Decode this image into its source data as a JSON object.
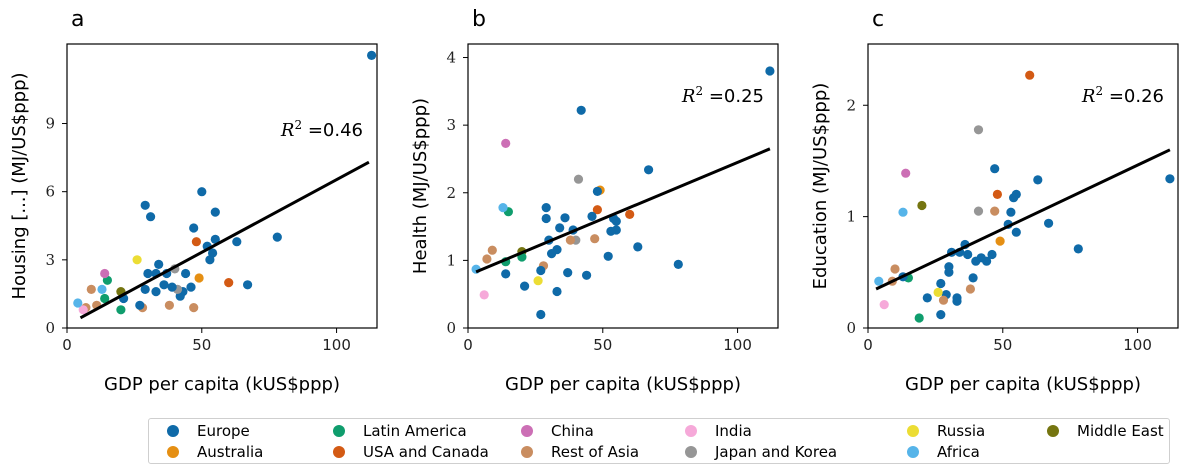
{
  "colors": {
    "Europe": "#0f6aa8",
    "Latin America": "#0f9d6d",
    "China": "#cc6fb5",
    "India": "#f6a9d9",
    "Russia": "#ecdd34",
    "Middle East": "#757510",
    "Australia": "#e58f13",
    "USA and Canada": "#d35a14",
    "Rest of Asia": "#c98d60",
    "Japan and Korea": "#969696",
    "Africa": "#56b4e9",
    "fit_line": "#000000"
  },
  "legend": {
    "row1": [
      "Europe",
      "Latin America",
      "China",
      "India",
      "Russia",
      "Middle East"
    ],
    "row2": [
      "Australia",
      "USA and Canada",
      "Rest of Asia",
      "Japan and Korea",
      "Africa"
    ]
  },
  "chart_data": [
    {
      "type": "scatter",
      "panel_label": "a",
      "xlabel": "GDP per capita (kUS$ppp)",
      "ylabel": "Housing [...] (MJ/US$ppp)",
      "xlim": [
        0,
        115
      ],
      "ylim": [
        0,
        12.5
      ],
      "xticks": [
        0,
        50,
        100
      ],
      "yticks": [
        0,
        3,
        6,
        9
      ],
      "annotation": "R² =0.46",
      "annotation_pos": "upper-right",
      "fit_line": {
        "x": [
          5,
          112
        ],
        "y": [
          0.45,
          7.3
        ]
      },
      "points": [
        {
          "x": 113,
          "y": 12.0,
          "group": "Europe"
        },
        {
          "x": 78,
          "y": 4.0,
          "group": "Europe"
        },
        {
          "x": 67,
          "y": 1.9,
          "group": "Europe"
        },
        {
          "x": 63,
          "y": 3.8,
          "group": "Europe"
        },
        {
          "x": 60,
          "y": 2.0,
          "group": "USA and Canada"
        },
        {
          "x": 55,
          "y": 5.1,
          "group": "Europe"
        },
        {
          "x": 55,
          "y": 3.9,
          "group": "Europe"
        },
        {
          "x": 54,
          "y": 3.3,
          "group": "Europe"
        },
        {
          "x": 53,
          "y": 3.0,
          "group": "Europe"
        },
        {
          "x": 52,
          "y": 3.6,
          "group": "Europe"
        },
        {
          "x": 50,
          "y": 6.0,
          "group": "Europe"
        },
        {
          "x": 49,
          "y": 2.2,
          "group": "Australia"
        },
        {
          "x": 48,
          "y": 3.8,
          "group": "USA and Canada"
        },
        {
          "x": 47,
          "y": 4.4,
          "group": "Europe"
        },
        {
          "x": 47,
          "y": 0.9,
          "group": "Rest of Asia"
        },
        {
          "x": 46,
          "y": 1.8,
          "group": "Europe"
        },
        {
          "x": 44,
          "y": 2.4,
          "group": "Europe"
        },
        {
          "x": 43,
          "y": 1.6,
          "group": "Europe"
        },
        {
          "x": 42,
          "y": 1.4,
          "group": "Europe"
        },
        {
          "x": 41,
          "y": 1.7,
          "group": "Japan and Korea"
        },
        {
          "x": 40,
          "y": 2.6,
          "group": "Japan and Korea"
        },
        {
          "x": 39,
          "y": 1.8,
          "group": "Europe"
        },
        {
          "x": 38,
          "y": 1.0,
          "group": "Rest of Asia"
        },
        {
          "x": 37,
          "y": 2.4,
          "group": "Europe"
        },
        {
          "x": 36,
          "y": 1.9,
          "group": "Europe"
        },
        {
          "x": 34,
          "y": 2.8,
          "group": "Europe"
        },
        {
          "x": 33,
          "y": 2.4,
          "group": "Europe"
        },
        {
          "x": 33,
          "y": 1.6,
          "group": "Europe"
        },
        {
          "x": 31,
          "y": 4.9,
          "group": "Europe"
        },
        {
          "x": 30,
          "y": 2.4,
          "group": "Europe"
        },
        {
          "x": 29,
          "y": 5.4,
          "group": "Europe"
        },
        {
          "x": 29,
          "y": 1.7,
          "group": "Europe"
        },
        {
          "x": 28,
          "y": 0.9,
          "group": "Rest of Asia"
        },
        {
          "x": 27,
          "y": 1.0,
          "group": "Europe"
        },
        {
          "x": 26,
          "y": 3.0,
          "group": "Russia"
        },
        {
          "x": 21,
          "y": 1.3,
          "group": "Europe"
        },
        {
          "x": 20,
          "y": 1.6,
          "group": "Middle East"
        },
        {
          "x": 20,
          "y": 0.8,
          "group": "Latin America"
        },
        {
          "x": 15,
          "y": 2.1,
          "group": "Latin America"
        },
        {
          "x": 14,
          "y": 2.4,
          "group": "China"
        },
        {
          "x": 14,
          "y": 1.3,
          "group": "Latin America"
        },
        {
          "x": 13,
          "y": 1.7,
          "group": "Africa"
        },
        {
          "x": 11,
          "y": 1.0,
          "group": "Rest of Asia"
        },
        {
          "x": 9,
          "y": 1.7,
          "group": "Rest of Asia"
        },
        {
          "x": 7,
          "y": 0.9,
          "group": "Rest of Asia"
        },
        {
          "x": 6,
          "y": 0.8,
          "group": "India"
        },
        {
          "x": 4,
          "y": 1.1,
          "group": "Africa"
        }
      ]
    },
    {
      "type": "scatter",
      "panel_label": "b",
      "xlabel": "GDP per capita (kUS$ppp)",
      "ylabel": "Health (MJ/US$ppp)",
      "xlim": [
        0,
        115
      ],
      "ylim": [
        0,
        4.2
      ],
      "xticks": [
        0,
        50,
        100
      ],
      "yticks": [
        0,
        1,
        2,
        3,
        4
      ],
      "annotation": "R² =0.25",
      "annotation_pos": "upper-right",
      "fit_line": {
        "x": [
          3,
          112
        ],
        "y": [
          0.83,
          2.65
        ]
      },
      "points": [
        {
          "x": 112,
          "y": 3.8,
          "group": "Europe"
        },
        {
          "x": 78,
          "y": 0.94,
          "group": "Europe"
        },
        {
          "x": 67,
          "y": 2.34,
          "group": "Europe"
        },
        {
          "x": 63,
          "y": 1.2,
          "group": "Europe"
        },
        {
          "x": 60,
          "y": 1.68,
          "group": "USA and Canada"
        },
        {
          "x": 55,
          "y": 1.58,
          "group": "Europe"
        },
        {
          "x": 55,
          "y": 1.45,
          "group": "Europe"
        },
        {
          "x": 54,
          "y": 1.62,
          "group": "Europe"
        },
        {
          "x": 53,
          "y": 1.43,
          "group": "Europe"
        },
        {
          "x": 52,
          "y": 1.06,
          "group": "Europe"
        },
        {
          "x": 49,
          "y": 2.04,
          "group": "Australia"
        },
        {
          "x": 48,
          "y": 1.75,
          "group": "USA and Canada"
        },
        {
          "x": 48,
          "y": 2.02,
          "group": "Europe"
        },
        {
          "x": 47,
          "y": 1.32,
          "group": "Rest of Asia"
        },
        {
          "x": 46,
          "y": 1.65,
          "group": "Europe"
        },
        {
          "x": 44,
          "y": 0.78,
          "group": "Europe"
        },
        {
          "x": 42,
          "y": 3.22,
          "group": "Europe"
        },
        {
          "x": 41,
          "y": 2.2,
          "group": "Japan and Korea"
        },
        {
          "x": 40,
          "y": 1.3,
          "group": "Japan and Korea"
        },
        {
          "x": 39,
          "y": 1.45,
          "group": "Europe"
        },
        {
          "x": 38,
          "y": 1.3,
          "group": "Rest of Asia"
        },
        {
          "x": 37,
          "y": 0.82,
          "group": "Europe"
        },
        {
          "x": 36,
          "y": 1.63,
          "group": "Europe"
        },
        {
          "x": 34,
          "y": 1.48,
          "group": "Europe"
        },
        {
          "x": 33,
          "y": 1.16,
          "group": "Europe"
        },
        {
          "x": 33,
          "y": 0.54,
          "group": "Europe"
        },
        {
          "x": 31,
          "y": 1.1,
          "group": "Europe"
        },
        {
          "x": 30,
          "y": 1.3,
          "group": "Europe"
        },
        {
          "x": 29,
          "y": 1.78,
          "group": "Europe"
        },
        {
          "x": 29,
          "y": 1.62,
          "group": "Europe"
        },
        {
          "x": 28,
          "y": 0.92,
          "group": "Rest of Asia"
        },
        {
          "x": 27,
          "y": 0.2,
          "group": "Europe"
        },
        {
          "x": 26,
          "y": 0.7,
          "group": "Russia"
        },
        {
          "x": 27,
          "y": 0.85,
          "group": "Europe"
        },
        {
          "x": 21,
          "y": 0.62,
          "group": "Europe"
        },
        {
          "x": 20,
          "y": 1.13,
          "group": "Middle East"
        },
        {
          "x": 20,
          "y": 1.05,
          "group": "Latin America"
        },
        {
          "x": 15,
          "y": 1.72,
          "group": "Latin America"
        },
        {
          "x": 14,
          "y": 2.73,
          "group": "China"
        },
        {
          "x": 14,
          "y": 0.98,
          "group": "Latin America"
        },
        {
          "x": 13,
          "y": 1.78,
          "group": "Africa"
        },
        {
          "x": 14,
          "y": 0.8,
          "group": "Europe"
        },
        {
          "x": 9,
          "y": 1.15,
          "group": "Rest of Asia"
        },
        {
          "x": 7,
          "y": 1.02,
          "group": "Rest of Asia"
        },
        {
          "x": 6,
          "y": 0.49,
          "group": "India"
        },
        {
          "x": 3,
          "y": 0.87,
          "group": "Africa"
        }
      ]
    },
    {
      "type": "scatter",
      "panel_label": "c",
      "xlabel": "GDP per capita (kUS$ppp)",
      "ylabel": "Education (MJ/US$ppp)",
      "xlim": [
        0,
        115
      ],
      "ylim": [
        0,
        2.55
      ],
      "xticks": [
        0,
        50,
        100
      ],
      "yticks": [
        0,
        1,
        2
      ],
      "annotation": "R² =0.26",
      "annotation_pos": "upper-right",
      "fit_line": {
        "x": [
          3,
          112
        ],
        "y": [
          0.35,
          1.6
        ]
      },
      "points": [
        {
          "x": 112,
          "y": 1.34,
          "group": "Europe"
        },
        {
          "x": 78,
          "y": 0.71,
          "group": "Europe"
        },
        {
          "x": 67,
          "y": 0.94,
          "group": "Europe"
        },
        {
          "x": 63,
          "y": 1.33,
          "group": "Europe"
        },
        {
          "x": 60,
          "y": 2.27,
          "group": "USA and Canada"
        },
        {
          "x": 55,
          "y": 1.2,
          "group": "Europe"
        },
        {
          "x": 55,
          "y": 0.86,
          "group": "Europe"
        },
        {
          "x": 54,
          "y": 1.17,
          "group": "Europe"
        },
        {
          "x": 53,
          "y": 1.04,
          "group": "Europe"
        },
        {
          "x": 52,
          "y": 0.93,
          "group": "Europe"
        },
        {
          "x": 49,
          "y": 0.78,
          "group": "Australia"
        },
        {
          "x": 48,
          "y": 1.2,
          "group": "USA and Canada"
        },
        {
          "x": 47,
          "y": 1.43,
          "group": "Europe"
        },
        {
          "x": 47,
          "y": 1.05,
          "group": "Rest of Asia"
        },
        {
          "x": 46,
          "y": 0.66,
          "group": "Europe"
        },
        {
          "x": 44,
          "y": 0.6,
          "group": "Europe"
        },
        {
          "x": 42,
          "y": 0.63,
          "group": "Europe"
        },
        {
          "x": 41,
          "y": 1.78,
          "group": "Japan and Korea"
        },
        {
          "x": 41,
          "y": 1.05,
          "group": "Japan and Korea"
        },
        {
          "x": 40,
          "y": 0.6,
          "group": "Europe"
        },
        {
          "x": 39,
          "y": 0.45,
          "group": "Europe"
        },
        {
          "x": 38,
          "y": 0.35,
          "group": "Rest of Asia"
        },
        {
          "x": 37,
          "y": 0.66,
          "group": "Europe"
        },
        {
          "x": 36,
          "y": 0.75,
          "group": "Europe"
        },
        {
          "x": 34,
          "y": 0.68,
          "group": "Europe"
        },
        {
          "x": 33,
          "y": 0.24,
          "group": "Europe"
        },
        {
          "x": 33,
          "y": 0.27,
          "group": "Europe"
        },
        {
          "x": 31,
          "y": 0.68,
          "group": "Europe"
        },
        {
          "x": 30,
          "y": 0.55,
          "group": "Europe"
        },
        {
          "x": 30,
          "y": 0.5,
          "group": "Europe"
        },
        {
          "x": 29,
          "y": 0.3,
          "group": "Europe"
        },
        {
          "x": 28,
          "y": 0.25,
          "group": "Rest of Asia"
        },
        {
          "x": 27,
          "y": 0.12,
          "group": "Europe"
        },
        {
          "x": 26,
          "y": 0.32,
          "group": "Russia"
        },
        {
          "x": 27,
          "y": 0.4,
          "group": "Europe"
        },
        {
          "x": 22,
          "y": 0.27,
          "group": "Europe"
        },
        {
          "x": 20,
          "y": 1.1,
          "group": "Middle East"
        },
        {
          "x": 19,
          "y": 0.09,
          "group": "Latin America"
        },
        {
          "x": 15,
          "y": 0.45,
          "group": "Latin America"
        },
        {
          "x": 14,
          "y": 1.39,
          "group": "China"
        },
        {
          "x": 13,
          "y": 1.04,
          "group": "Africa"
        },
        {
          "x": 13,
          "y": 0.46,
          "group": "Europe"
        },
        {
          "x": 10,
          "y": 0.53,
          "group": "Rest of Asia"
        },
        {
          "x": 9,
          "y": 0.42,
          "group": "Rest of Asia"
        },
        {
          "x": 6,
          "y": 0.21,
          "group": "India"
        },
        {
          "x": 4,
          "y": 0.42,
          "group": "Africa"
        }
      ]
    }
  ]
}
